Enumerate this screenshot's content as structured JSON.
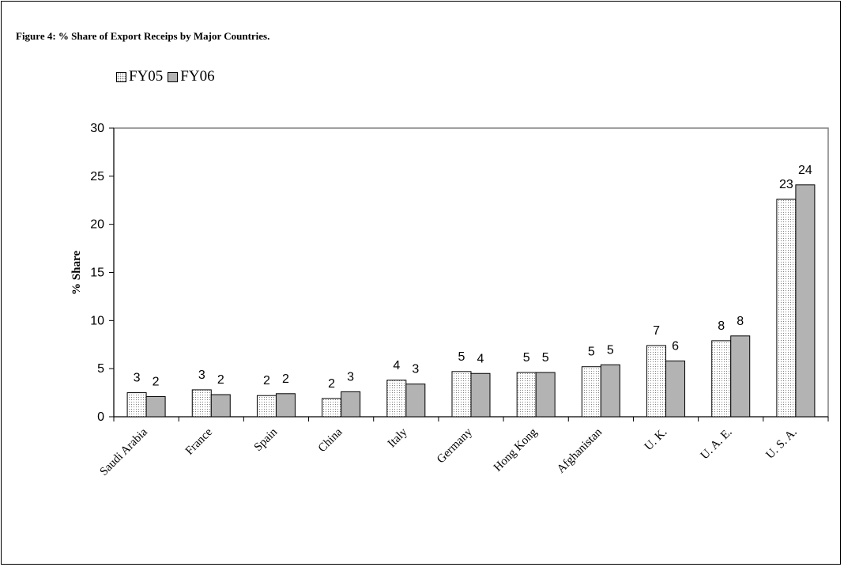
{
  "chart_data": {
    "type": "bar",
    "title": "Figure 4: % Share of Export Receips by Major Countries.",
    "xlabel": "",
    "ylabel": "% Share",
    "ylim": [
      0,
      30
    ],
    "yticks": [
      "0",
      "5",
      "10",
      "15",
      "20",
      "25",
      "30"
    ],
    "grid": false,
    "legend_position": "top-left",
    "categories": [
      "Saudi Arabia",
      "France",
      "Spain",
      "China",
      "Italy",
      "Germany",
      "Hong Kong",
      "Afghanistan",
      "U. K.",
      "U. A. E.",
      "U. S. A."
    ],
    "series": [
      {
        "name": "FY05",
        "values": [
          2.5,
          2.8,
          2.2,
          1.9,
          3.8,
          4.7,
          4.6,
          5.2,
          7.4,
          7.9,
          22.6
        ],
        "labels": [
          "3",
          "3",
          "2",
          "2",
          "4",
          "5",
          "5",
          "5",
          "7",
          "8",
          "23"
        ],
        "color": "#ffffff",
        "pattern": "dotted"
      },
      {
        "name": "FY06",
        "values": [
          2.1,
          2.3,
          2.4,
          2.6,
          3.4,
          4.5,
          4.6,
          5.4,
          5.8,
          8.4,
          24.1
        ],
        "labels": [
          "2",
          "2",
          "2",
          "3",
          "3",
          "4",
          "5",
          "5",
          "6",
          "8",
          "24"
        ],
        "color": "#b3b3b3",
        "pattern": "solid"
      }
    ]
  }
}
